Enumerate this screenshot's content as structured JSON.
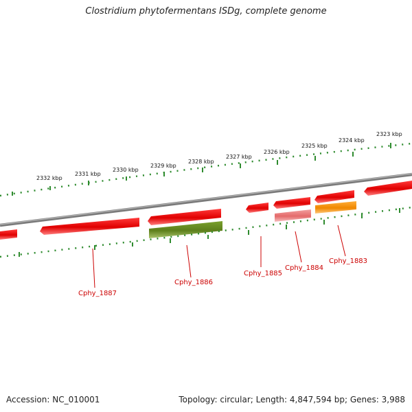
{
  "title": "Clostridium phytofermentans ISDg, complete genome",
  "footer": {
    "accession": "Accession: NC_010001",
    "summary": "Topology: circular; Length: 4,847,594 bp; Genes: 3,988"
  },
  "colors": {
    "backbone": "#808080",
    "ruler": "#2e8b2e",
    "gene_forward": "#e00000",
    "gene_label": "#cc0000",
    "feature_green": "#6b8e23",
    "feature_pink": "#e87f7f",
    "feature_orange": "#ff8c00"
  },
  "ruler_labels": [
    "2332 kbp",
    "2331 kbp",
    "2330 kbp",
    "2329 kbp",
    "2328 kbp",
    "2327 kbp",
    "2326 kbp",
    "2325 kbp",
    "2324 kbp",
    "2323 kbp"
  ],
  "gene_labels": [
    "Cphy_1887",
    "Cphy_1886",
    "Cphy_1885",
    "Cphy_1884",
    "Cphy_1883"
  ]
}
